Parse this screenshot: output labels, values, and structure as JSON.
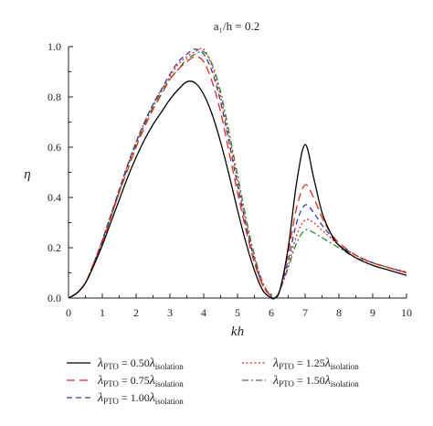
{
  "chart_data": {
    "type": "line",
    "title": "a₁/h = 0.2",
    "xlabel": "kh",
    "ylabel": "η",
    "xlim": [
      0,
      10
    ],
    "ylim": [
      0,
      1.0
    ],
    "x_ticks": [
      "0",
      "1",
      "2",
      "3",
      "4",
      "5",
      "6",
      "7",
      "8",
      "9",
      "10"
    ],
    "y_ticks": [
      "0.0",
      "0.2",
      "0.4",
      "0.6",
      "0.8",
      "1.0"
    ],
    "grid": false,
    "legend_position": "bottom",
    "legend": {
      "prefix": "λ",
      "prefix_sub": "PTO",
      "suffix": "λ",
      "suffix_sub": "isolation"
    },
    "series": [
      {
        "name": "λPTO = 0.50λisolation",
        "coefficient": "= 0.50",
        "color": "#000000",
        "dash": "solid",
        "x": [
          0,
          0.25,
          0.5,
          0.75,
          1.0,
          1.25,
          1.5,
          1.75,
          2.0,
          2.25,
          2.5,
          2.75,
          3.0,
          3.25,
          3.5,
          3.75,
          4.0,
          4.25,
          4.5,
          4.75,
          5.0,
          5.25,
          5.5,
          5.75,
          6.0,
          6.1,
          6.25,
          6.5,
          6.75,
          7.0,
          7.25,
          7.5,
          7.75,
          8.0,
          8.5,
          9.0,
          9.5,
          10.0
        ],
        "y": [
          0,
          0.02,
          0.06,
          0.13,
          0.21,
          0.3,
          0.39,
          0.48,
          0.56,
          0.63,
          0.69,
          0.74,
          0.79,
          0.83,
          0.86,
          0.855,
          0.81,
          0.73,
          0.62,
          0.49,
          0.35,
          0.22,
          0.11,
          0.03,
          0.0,
          0.0,
          0.03,
          0.2,
          0.46,
          0.61,
          0.48,
          0.34,
          0.26,
          0.21,
          0.16,
          0.13,
          0.11,
          0.09
        ]
      },
      {
        "name": "λPTO = 0.75λisolation",
        "coefficient": "= 0.75",
        "color": "#e8281e",
        "dash": "long",
        "x": [
          0,
          0.25,
          0.5,
          0.75,
          1.0,
          1.25,
          1.5,
          1.75,
          2.0,
          2.25,
          2.5,
          2.75,
          3.0,
          3.25,
          3.5,
          3.75,
          4.0,
          4.25,
          4.5,
          4.75,
          5.0,
          5.25,
          5.5,
          5.75,
          6.0,
          6.1,
          6.25,
          6.5,
          6.75,
          7.0,
          7.25,
          7.5,
          7.75,
          8.0,
          8.5,
          9.0,
          9.5,
          10.0
        ],
        "y": [
          0,
          0.02,
          0.06,
          0.14,
          0.22,
          0.32,
          0.42,
          0.51,
          0.6,
          0.68,
          0.75,
          0.81,
          0.87,
          0.91,
          0.94,
          0.96,
          0.94,
          0.86,
          0.74,
          0.58,
          0.42,
          0.27,
          0.14,
          0.05,
          0.005,
          0.0,
          0.03,
          0.18,
          0.36,
          0.45,
          0.4,
          0.32,
          0.26,
          0.22,
          0.17,
          0.14,
          0.12,
          0.1
        ]
      },
      {
        "name": "λPTO = 1.00λisolation",
        "coefficient": "= 1.00",
        "color": "#2e3da8",
        "dash": "dash",
        "x": [
          0,
          0.25,
          0.5,
          0.75,
          1.0,
          1.25,
          1.5,
          1.75,
          2.0,
          2.25,
          2.5,
          2.75,
          3.0,
          3.25,
          3.5,
          3.75,
          4.0,
          4.25,
          4.5,
          4.75,
          5.0,
          5.25,
          5.5,
          5.75,
          6.0,
          6.1,
          6.25,
          6.5,
          6.75,
          7.0,
          7.25,
          7.5,
          7.75,
          8.0,
          8.5,
          9.0,
          9.5,
          10.0
        ],
        "y": [
          0,
          0.02,
          0.06,
          0.14,
          0.23,
          0.33,
          0.43,
          0.53,
          0.62,
          0.7,
          0.77,
          0.83,
          0.89,
          0.94,
          0.97,
          0.99,
          0.97,
          0.9,
          0.78,
          0.62,
          0.45,
          0.29,
          0.15,
          0.05,
          0.005,
          0.0,
          0.03,
          0.15,
          0.3,
          0.37,
          0.34,
          0.29,
          0.25,
          0.21,
          0.17,
          0.14,
          0.12,
          0.1
        ]
      },
      {
        "name": "λPTO = 1.25λisolation",
        "coefficient": "= 1.25",
        "color": "#e8281e",
        "dash": "dot",
        "x": [
          0,
          0.25,
          0.5,
          0.75,
          1.0,
          1.25,
          1.5,
          1.75,
          2.0,
          2.25,
          2.5,
          2.75,
          3.0,
          3.25,
          3.5,
          3.75,
          4.0,
          4.25,
          4.5,
          4.75,
          5.0,
          5.25,
          5.5,
          5.75,
          6.0,
          6.1,
          6.25,
          6.5,
          6.75,
          7.0,
          7.25,
          7.5,
          7.75,
          8.0,
          8.5,
          9.0,
          9.5,
          10.0
        ],
        "y": [
          0,
          0.02,
          0.06,
          0.14,
          0.23,
          0.33,
          0.43,
          0.53,
          0.62,
          0.7,
          0.77,
          0.83,
          0.88,
          0.93,
          0.96,
          0.98,
          0.99,
          0.92,
          0.8,
          0.64,
          0.47,
          0.3,
          0.16,
          0.06,
          0.005,
          0.0,
          0.03,
          0.13,
          0.25,
          0.31,
          0.3,
          0.27,
          0.24,
          0.21,
          0.17,
          0.14,
          0.12,
          0.105
        ]
      },
      {
        "name": "λPTO = 1.50λisolation",
        "coefficient": "= 1.50",
        "color": "#2e8b2e",
        "dash": "dashdot",
        "x": [
          0,
          0.25,
          0.5,
          0.75,
          1.0,
          1.25,
          1.5,
          1.75,
          2.0,
          2.25,
          2.5,
          2.75,
          3.0,
          3.25,
          3.5,
          3.75,
          4.0,
          4.25,
          4.5,
          4.75,
          5.0,
          5.25,
          5.5,
          5.75,
          6.0,
          6.1,
          6.25,
          6.5,
          6.75,
          7.0,
          7.25,
          7.5,
          7.75,
          8.0,
          8.5,
          9.0,
          9.5,
          10.0
        ],
        "y": [
          0,
          0.02,
          0.06,
          0.13,
          0.22,
          0.32,
          0.42,
          0.52,
          0.61,
          0.69,
          0.76,
          0.82,
          0.87,
          0.91,
          0.95,
          0.97,
          0.98,
          0.93,
          0.82,
          0.66,
          0.49,
          0.32,
          0.17,
          0.06,
          0.005,
          0.0,
          0.03,
          0.12,
          0.22,
          0.27,
          0.26,
          0.24,
          0.22,
          0.2,
          0.16,
          0.14,
          0.12,
          0.1
        ]
      }
    ]
  }
}
